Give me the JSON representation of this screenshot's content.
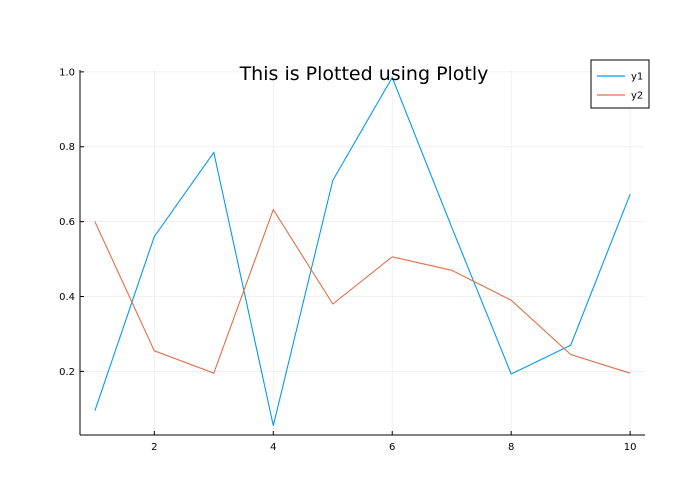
{
  "chart_data": {
    "type": "line",
    "title": "This is Plotted using Plotly",
    "xlabel": "",
    "ylabel": "",
    "x": [
      1,
      2,
      3,
      4,
      5,
      6,
      7,
      8,
      9,
      10
    ],
    "xlim": [
      0.75,
      10.25
    ],
    "ylim": [
      0.03,
      1.005
    ],
    "x_ticks": [
      2,
      4,
      6,
      8,
      10
    ],
    "x_tick_labels": [
      "2",
      "4",
      "6",
      "8",
      "10"
    ],
    "y_ticks": [
      0.2,
      0.4,
      0.6,
      0.8,
      1.0
    ],
    "y_tick_labels": [
      "0.2",
      "0.4",
      "0.6",
      "0.8",
      "1.0"
    ],
    "grid": true,
    "legend_position": "top-right",
    "series": [
      {
        "name": "y1",
        "color": "#009af9",
        "values": [
          0.095,
          0.56,
          0.785,
          0.055,
          0.71,
          0.985,
          0.585,
          0.193,
          0.27,
          0.673
        ]
      },
      {
        "name": "y2",
        "color": "#e26f46",
        "values": [
          0.6,
          0.255,
          0.195,
          0.632,
          0.38,
          0.506,
          0.47,
          0.39,
          0.245,
          0.195
        ]
      }
    ]
  }
}
